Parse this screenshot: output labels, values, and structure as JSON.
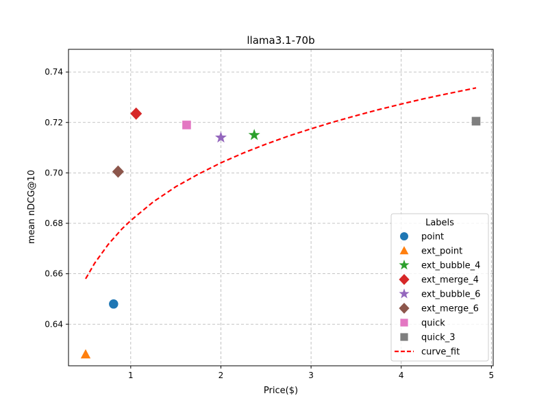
{
  "chart_data": {
    "type": "scatter",
    "title": "llama3.1-70b",
    "xlabel": "Price($)",
    "ylabel": "mean nDCG@10",
    "xlim": [
      0.31,
      5.02
    ],
    "ylim": [
      0.6235,
      0.749
    ],
    "xticks": [
      1,
      2,
      3,
      4,
      5
    ],
    "xtick_labels": [
      "1",
      "2",
      "3",
      "4",
      "5"
    ],
    "yticks": [
      0.64,
      0.66,
      0.68,
      0.7,
      0.72,
      0.74
    ],
    "ytick_labels": [
      "0.64",
      "0.66",
      "0.68",
      "0.70",
      "0.72",
      "0.74"
    ],
    "grid": true,
    "legend_title": "Labels",
    "legend_position": "lower-right",
    "series": [
      {
        "name": "point",
        "marker": "circle",
        "color": "#1f77b4",
        "x": [
          0.81
        ],
        "y": [
          0.648
        ]
      },
      {
        "name": "ext_point",
        "marker": "triangle",
        "color": "#ff7f0e",
        "x": [
          0.5
        ],
        "y": [
          0.628
        ]
      },
      {
        "name": "ext_bubble_4",
        "marker": "star",
        "color": "#2ca02c",
        "x": [
          2.37
        ],
        "y": [
          0.715
        ]
      },
      {
        "name": "ext_merge_4",
        "marker": "diamond",
        "color": "#d62728",
        "x": [
          1.06
        ],
        "y": [
          0.7235
        ]
      },
      {
        "name": "ext_bubble_6",
        "marker": "star",
        "color": "#9467bd",
        "x": [
          2.0
        ],
        "y": [
          0.714
        ]
      },
      {
        "name": "ext_merge_6",
        "marker": "diamond",
        "color": "#8c564b",
        "x": [
          0.86
        ],
        "y": [
          0.7005
        ]
      },
      {
        "name": "quick",
        "marker": "square",
        "color": "#e377c2",
        "x": [
          1.62
        ],
        "y": [
          0.719
        ]
      },
      {
        "name": "quick_3",
        "marker": "square",
        "color": "#7f7f7f",
        "x": [
          4.83
        ],
        "y": [
          0.7205
        ]
      }
    ],
    "curve_fit": {
      "name": "curve_fit",
      "color": "#ff0000",
      "style": "dashed",
      "x": [
        0.5,
        0.6,
        0.75,
        0.9,
        1.0,
        1.25,
        1.5,
        1.75,
        2.0,
        2.25,
        2.5,
        2.75,
        3.0,
        3.25,
        3.5,
        3.75,
        4.0,
        4.25,
        4.5,
        4.83
      ],
      "y": [
        0.658,
        0.6642,
        0.6716,
        0.6777,
        0.6811,
        0.6885,
        0.6945,
        0.6995,
        0.704,
        0.7079,
        0.7114,
        0.7146,
        0.7175,
        0.7202,
        0.7227,
        0.7251,
        0.7273,
        0.7294,
        0.7313,
        0.7337
      ]
    }
  }
}
